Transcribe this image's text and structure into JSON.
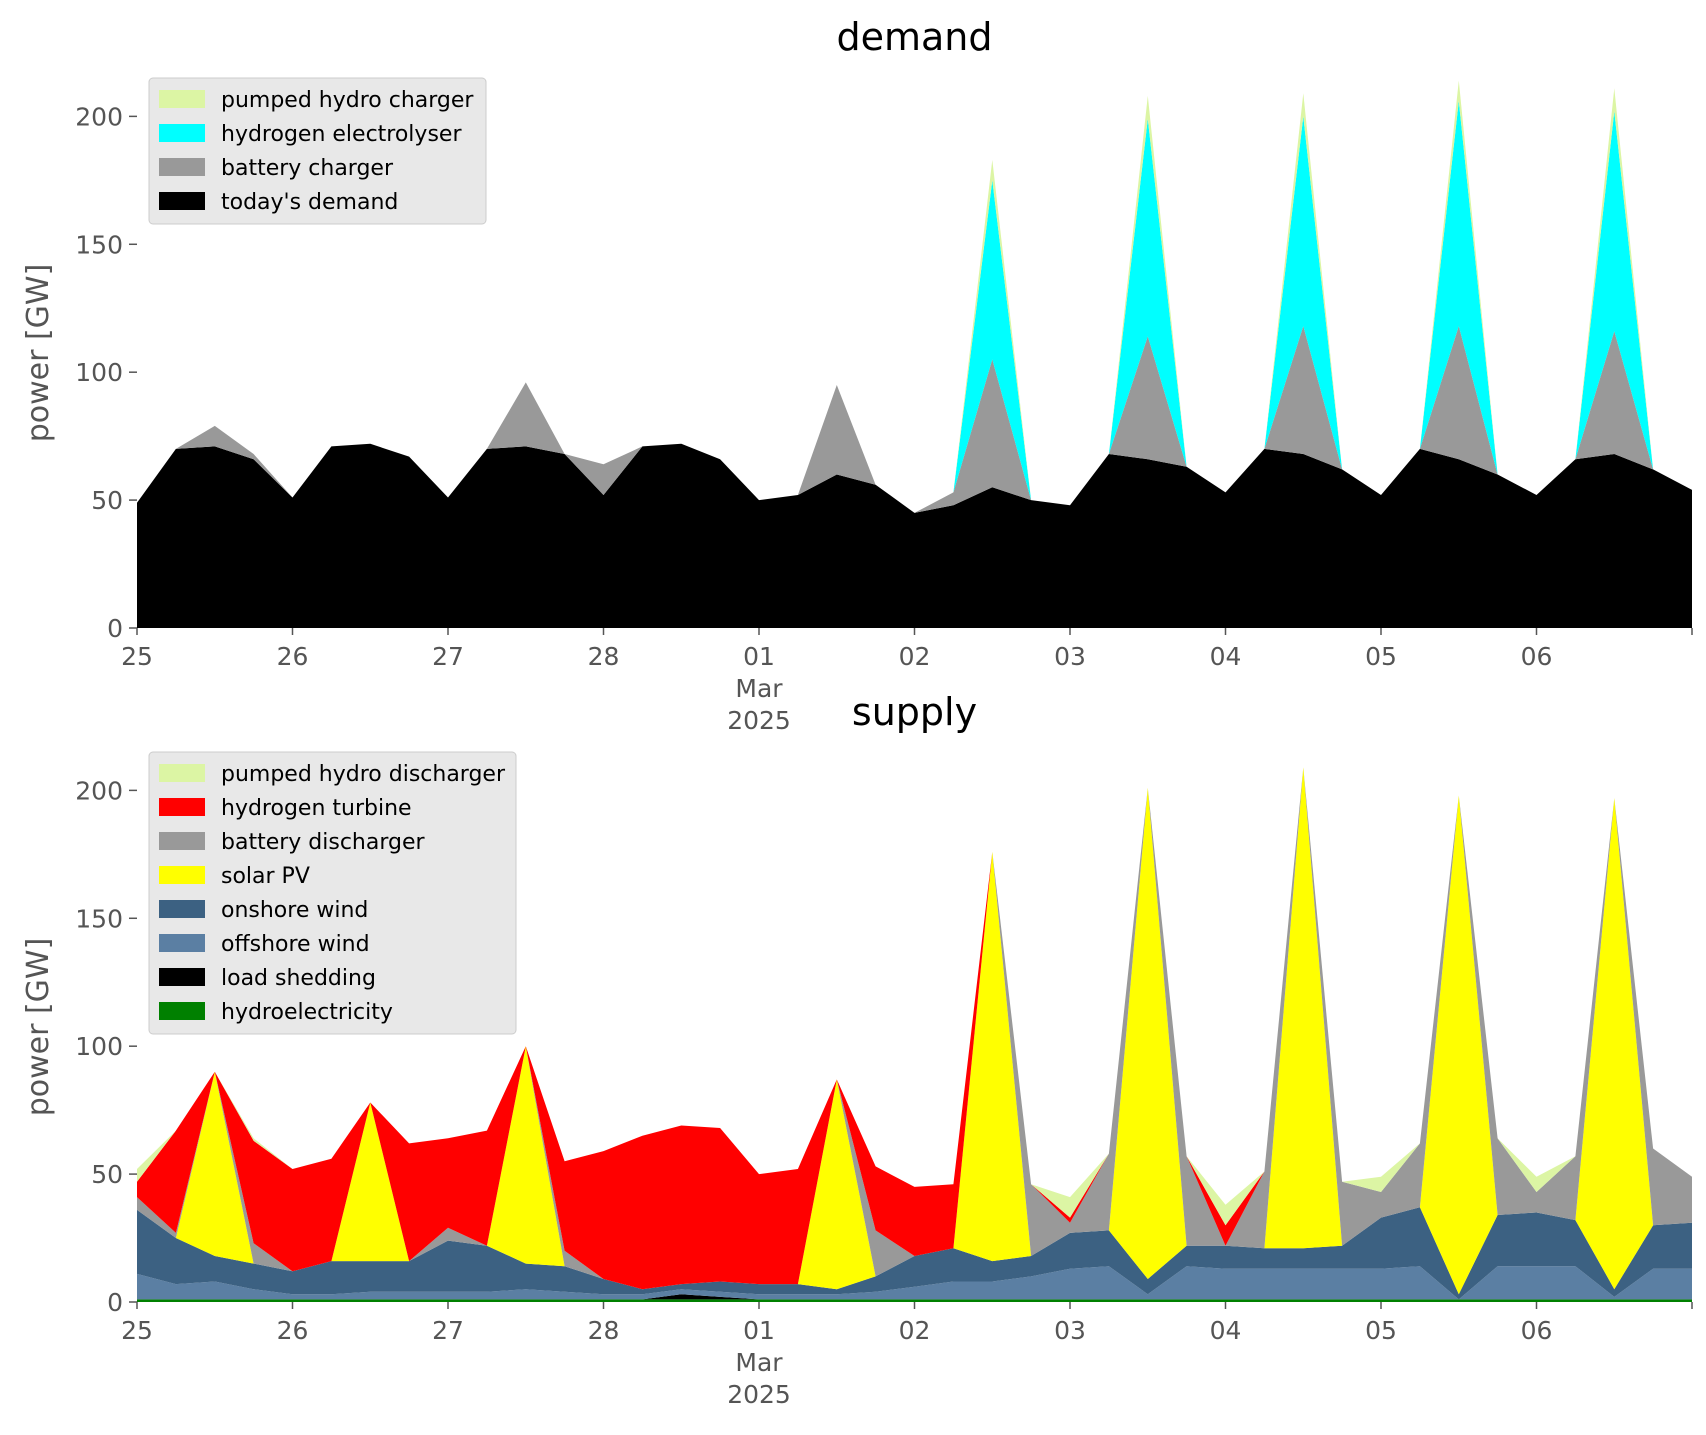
{
  "chart_data": [
    {
      "type": "area",
      "stacked": true,
      "title": "demand",
      "xlabel": "",
      "ylabel": "power [GW]",
      "x_ticks": [
        "25",
        "26",
        "27",
        "28",
        "01",
        "02",
        "03",
        "04",
        "05",
        "06"
      ],
      "x_tick_month_label": "Mar",
      "x_tick_year_label": "2025",
      "xlim_days": [
        0,
        10
      ],
      "ylim": [
        0,
        215
      ],
      "y_ticks": [
        0,
        50,
        100,
        150,
        200
      ],
      "grid": false,
      "legend_position": "top-left",
      "x_days": [
        0,
        0.25,
        0.5,
        0.75,
        1,
        1.25,
        1.5,
        1.75,
        2,
        2.25,
        2.5,
        2.75,
        3,
        3.25,
        3.5,
        3.75,
        4,
        4.25,
        4.5,
        4.75,
        5,
        5.25,
        5.5,
        5.75,
        6,
        6.25,
        6.5,
        6.75,
        7,
        7.25,
        7.5,
        7.75,
        8,
        8.25,
        8.5,
        8.75,
        9,
        9.25,
        9.5,
        9.75,
        10
      ],
      "series": [
        {
          "name": "today's demand",
          "color": "#000000",
          "values": [
            49,
            70,
            71,
            66,
            51,
            71,
            72,
            67,
            51,
            70,
            71,
            68,
            52,
            71,
            72,
            66,
            50,
            52,
            60,
            56,
            45,
            48,
            55,
            50,
            48,
            68,
            66,
            63,
            53,
            70,
            68,
            62,
            52,
            70,
            66,
            60,
            52,
            66,
            68,
            62,
            54
          ]
        },
        {
          "name": "battery charger",
          "color": "#999999",
          "values": [
            0,
            0,
            8,
            2,
            0,
            0,
            0,
            0,
            0,
            0,
            25,
            0,
            12,
            0,
            0,
            0,
            0,
            0,
            35,
            0,
            0,
            5,
            50,
            0,
            0,
            0,
            48,
            0,
            0,
            0,
            50,
            0,
            0,
            0,
            52,
            0,
            0,
            0,
            48,
            0,
            0
          ]
        },
        {
          "name": "hydrogen electrolyser",
          "color": "#00FFFF",
          "values": [
            0,
            0,
            0,
            0,
            0,
            0,
            0,
            0,
            0,
            0,
            0,
            0,
            0,
            0,
            0,
            0,
            0,
            0,
            0,
            0,
            0,
            0,
            70,
            0,
            0,
            0,
            85,
            0,
            0,
            0,
            82,
            0,
            0,
            0,
            88,
            0,
            0,
            0,
            86,
            0,
            0
          ]
        },
        {
          "name": "pumped hydro charger",
          "color": "#DCF5A4",
          "values": [
            0,
            0,
            0,
            0,
            0,
            0,
            0,
            0,
            0,
            0,
            0,
            0,
            0,
            0,
            0,
            0,
            0,
            0,
            0,
            0,
            0,
            0,
            8,
            0,
            0,
            0,
            9,
            0,
            0,
            0,
            9,
            0,
            0,
            0,
            8,
            0,
            0,
            0,
            9,
            0,
            0
          ]
        }
      ]
    },
    {
      "type": "area",
      "stacked": true,
      "title": "supply",
      "xlabel": "",
      "ylabel": "power [GW]",
      "x_ticks": [
        "25",
        "26",
        "27",
        "28",
        "01",
        "02",
        "03",
        "04",
        "05",
        "06"
      ],
      "x_tick_month_label": "Mar",
      "x_tick_year_label": "2025",
      "xlim_days": [
        0,
        10
      ],
      "ylim": [
        0,
        215
      ],
      "y_ticks": [
        0,
        50,
        100,
        150,
        200
      ],
      "grid": false,
      "legend_position": "top-left",
      "x_days": [
        0,
        0.25,
        0.5,
        0.75,
        1,
        1.25,
        1.5,
        1.75,
        2,
        2.25,
        2.5,
        2.75,
        3,
        3.25,
        3.5,
        3.75,
        4,
        4.25,
        4.5,
        4.75,
        5,
        5.25,
        5.5,
        5.75,
        6,
        6.25,
        6.5,
        6.75,
        7,
        7.25,
        7.5,
        7.75,
        8,
        8.25,
        8.5,
        8.75,
        9,
        9.25,
        9.5,
        9.75,
        10
      ],
      "series": [
        {
          "name": "hydroelectricity",
          "color": "#008000",
          "values": [
            1,
            1,
            1,
            1,
            1,
            1,
            1,
            1,
            1,
            1,
            1,
            1,
            1,
            1,
            1,
            1,
            1,
            1,
            1,
            1,
            1,
            1,
            1,
            1,
            1,
            1,
            1,
            1,
            1,
            1,
            1,
            1,
            1,
            1,
            1,
            1,
            1,
            1,
            1,
            1,
            1
          ]
        },
        {
          "name": "load shedding",
          "color": "#000000",
          "values": [
            0,
            0,
            0,
            0,
            0,
            0,
            0,
            0,
            0,
            0,
            0,
            0,
            0,
            0,
            2,
            1,
            0,
            0,
            0,
            0,
            0,
            0,
            0,
            0,
            0,
            0,
            0,
            0,
            0,
            0,
            0,
            0,
            0,
            0,
            0,
            0,
            0,
            0,
            0,
            0,
            0
          ]
        },
        {
          "name": "offshore wind",
          "color": "#5B7FA3",
          "values": [
            10,
            6,
            7,
            4,
            2,
            2,
            3,
            3,
            3,
            3,
            4,
            3,
            2,
            2,
            2,
            2,
            2,
            2,
            2,
            3,
            5,
            7,
            7,
            9,
            12,
            13,
            2,
            13,
            12,
            12,
            12,
            12,
            12,
            13,
            0,
            13,
            13,
            13,
            1,
            12,
            12
          ]
        },
        {
          "name": "onshore wind",
          "color": "#3C6182",
          "values": [
            25,
            18,
            10,
            10,
            9,
            13,
            12,
            12,
            20,
            18,
            10,
            10,
            6,
            2,
            2,
            4,
            4,
            4,
            2,
            6,
            12,
            13,
            8,
            8,
            14,
            14,
            6,
            8,
            9,
            8,
            8,
            9,
            20,
            23,
            2,
            20,
            21,
            18,
            3,
            17,
            18
          ]
        },
        {
          "name": "solar PV",
          "color": "#FFFF00",
          "values": [
            0,
            0,
            72,
            0,
            0,
            0,
            62,
            0,
            0,
            0,
            85,
            0,
            0,
            0,
            0,
            0,
            0,
            0,
            82,
            0,
            0,
            0,
            160,
            0,
            0,
            0,
            192,
            0,
            0,
            0,
            188,
            0,
            0,
            0,
            195,
            0,
            0,
            0,
            192,
            0,
            0
          ]
        },
        {
          "name": "battery discharger",
          "color": "#999999",
          "values": [
            5,
            2,
            0,
            8,
            0,
            0,
            0,
            0,
            5,
            0,
            0,
            6,
            0,
            0,
            0,
            0,
            0,
            0,
            0,
            18,
            0,
            0,
            0,
            28,
            4,
            30,
            0,
            35,
            0,
            30,
            0,
            25,
            10,
            25,
            0,
            30,
            8,
            25,
            0,
            30,
            18
          ]
        },
        {
          "name": "hydrogen turbine",
          "color": "#FF0000",
          "values": [
            6,
            40,
            0,
            40,
            40,
            40,
            0,
            46,
            35,
            45,
            0,
            35,
            50,
            60,
            62,
            60,
            43,
            45,
            0,
            25,
            27,
            25,
            0,
            0,
            2,
            0,
            0,
            0,
            8,
            0,
            0,
            0,
            0,
            0,
            0,
            0,
            0,
            0,
            0,
            0,
            0
          ]
        },
        {
          "name": "pumped hydro discharger",
          "color": "#DCF5A4",
          "values": [
            5,
            0,
            0,
            1,
            0,
            0,
            0,
            0,
            0,
            0,
            0,
            0,
            0,
            0,
            0,
            0,
            0,
            0,
            0,
            0,
            0,
            0,
            0,
            0,
            8,
            0,
            0,
            0,
            8,
            0,
            0,
            0,
            6,
            0,
            0,
            0,
            6,
            0,
            0,
            0,
            0
          ]
        }
      ]
    }
  ]
}
